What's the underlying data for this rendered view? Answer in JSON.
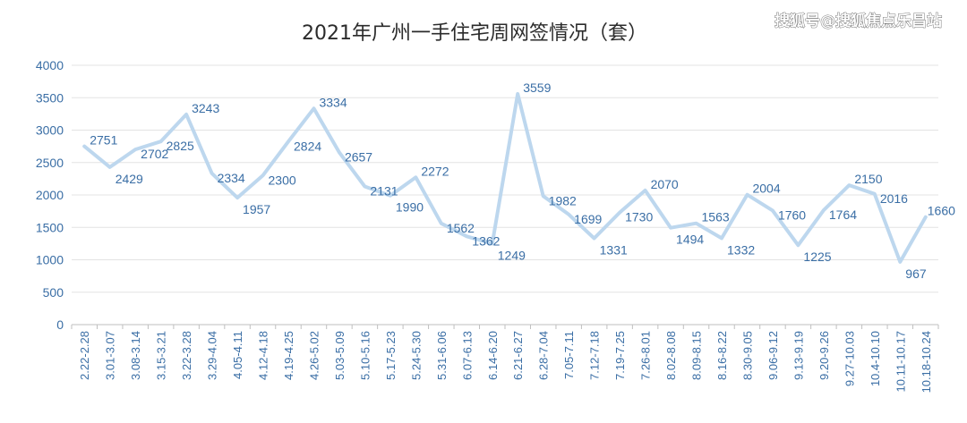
{
  "chart_data": {
    "type": "line",
    "title": "2021年广州一手住宅周网签情况（套）",
    "xlabel": "",
    "ylabel": "",
    "ylim": [
      0,
      4000
    ],
    "yticks": [
      0,
      500,
      1000,
      1500,
      2000,
      2500,
      3000,
      3500,
      4000
    ],
    "grid": true,
    "legend": "none",
    "line_color": "#bdd7ee",
    "label_color": "#3a6ea5",
    "categories": [
      "2.22-2.28",
      "3.01-3.07",
      "3.08-3.14",
      "3.15-3.21",
      "3.22-3.28",
      "3.29-4.04",
      "4.05-4.11",
      "4.12-4.18",
      "4.19-4.25",
      "4.26-5.02",
      "5.03-5.09",
      "5.10-5.16",
      "5.17-5.23",
      "5.24-5.30",
      "5.31-6.06",
      "6.07-6.13",
      "6.14-6.20",
      "6.21-6.27",
      "6.28-7.04",
      "7.05-7.11",
      "7.12-7.18",
      "7.19-7.25",
      "7.26-8.01",
      "8.02-8.08",
      "8.09-8.15",
      "8.16-8.22",
      "8.30-9.05",
      "9.06-9.12",
      "9.13-9.19",
      "9.20-9.26",
      "9.27-10.03",
      "10.4-10.10",
      "10.11-10.17",
      "10.18-10.24"
    ],
    "series": [
      {
        "values": [
          2751,
          2429,
          2702,
          2825,
          3243,
          2334,
          1957,
          2300,
          2824,
          3334,
          2657,
          2131,
          1990,
          2272,
          1562,
          1362,
          1249,
          3559,
          1982,
          1699,
          1331,
          1730,
          2070,
          1494,
          1563,
          1332,
          2004,
          1760,
          1225,
          1764,
          2150,
          2016,
          967,
          1660
        ],
        "labels": [
          "2751",
          "2429",
          "2702",
          "2825",
          "3243",
          "2334",
          "1957",
          "2300",
          "2824",
          "3334",
          "2657",
          "2131",
          "1990",
          "2272",
          "1562",
          "1362",
          "1249",
          "3559",
          "1982",
          "1699",
          "1331",
          "1730",
          "2070",
          "1494",
          "1563",
          "1332",
          "2004",
          "1760",
          "1225",
          "1764",
          "2150",
          "2016",
          "967",
          "1660"
        ]
      }
    ]
  },
  "watermark": "搜狐号@搜狐焦点乐昌站"
}
